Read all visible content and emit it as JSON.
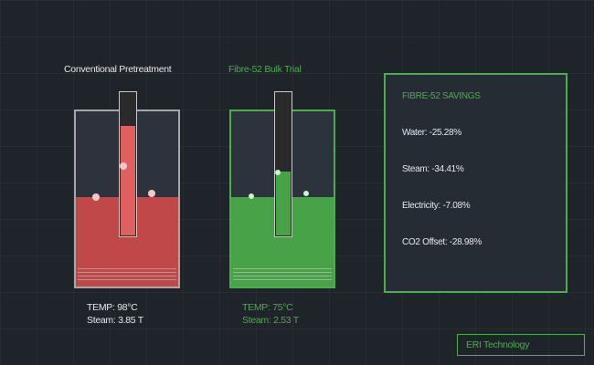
{
  "conventional": {
    "title": "Conventional Pretreatment",
    "temp": "TEMP: 98°C",
    "steam": "Steam: 3.85 T",
    "liquid_level_pct": 51,
    "thermometer_level_pct": 76,
    "liquid_color": "#c04848",
    "bubble_color": "#f5c7c7",
    "frame_color": "#a7a7a7"
  },
  "fibre52": {
    "title": "Fibre-52 Bulk Trial",
    "temp": "TEMP: 75°C",
    "steam": "Steam: 2.53 T",
    "liquid_level_pct": 51,
    "thermometer_level_pct": 44,
    "liquid_color": "#48a348",
    "bubble_color": "#c9f5c9",
    "frame_color": "#4cad4c"
  },
  "savings": {
    "title": "FIBRE-52 SAVINGS",
    "water": "Water: -25.28%",
    "steam": "Steam: -34.41%",
    "electricity": "Electricity: -7.08%",
    "co2": "CO2 Offset: -28.98%"
  },
  "brand": "ERI Technology",
  "colors": {
    "accent_green": "#4cad4c",
    "text_light": "#e8e8e8",
    "background": "#1f232a"
  }
}
